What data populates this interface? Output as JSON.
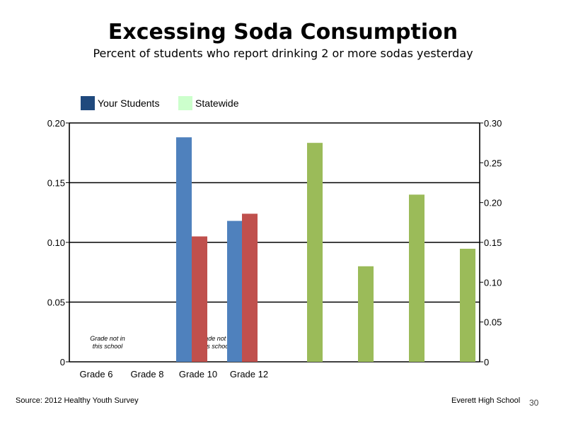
{
  "page": {
    "title": "Excessing Soda Consumption",
    "subtitle": "Percent of students who report drinking 2 or more sodas yesterday",
    "source": "Source: 2012 Healthy Youth Survey",
    "school": "Everett High School",
    "page_number": "30"
  },
  "chart_data": {
    "type": "bar",
    "categories": [
      "Grade 6",
      "Grade 8",
      "Grade 10",
      "Grade 12"
    ],
    "legend": [
      {
        "label": "Your Students",
        "color": "#1f497d"
      },
      {
        "label": "Statewide",
        "color": "#ccffcc"
      }
    ],
    "legend_position": "top-left",
    "left_axis": {
      "ylim": [
        0,
        0.2
      ],
      "ticks": [
        "0",
        "0.05",
        "0.10",
        "0.15",
        "0.20"
      ]
    },
    "right_axis": {
      "ylim": [
        0,
        0.3
      ],
      "ticks": [
        "0",
        "0.05",
        "0.10",
        "0.15",
        "0.20",
        "0.25",
        "0.30"
      ]
    },
    "gridlines": true,
    "annotations": [
      {
        "category": "Grade 6",
        "lines": [
          "Grade not in",
          "this school"
        ]
      },
      {
        "category": "Grade 8",
        "lines": [
          "Grade not in",
          "this school"
        ]
      }
    ],
    "series": [
      {
        "axis": "left",
        "color": "#4f81bd",
        "values": [
          null,
          null,
          0.188,
          0.118
        ]
      },
      {
        "axis": "left",
        "color": "#c0504d",
        "values": [
          null,
          null,
          0.105,
          0.124
        ]
      },
      {
        "axis": "right",
        "color": "#9bbb59",
        "values": [
          0.275,
          0.12,
          0.21,
          0.142
        ]
      }
    ]
  }
}
